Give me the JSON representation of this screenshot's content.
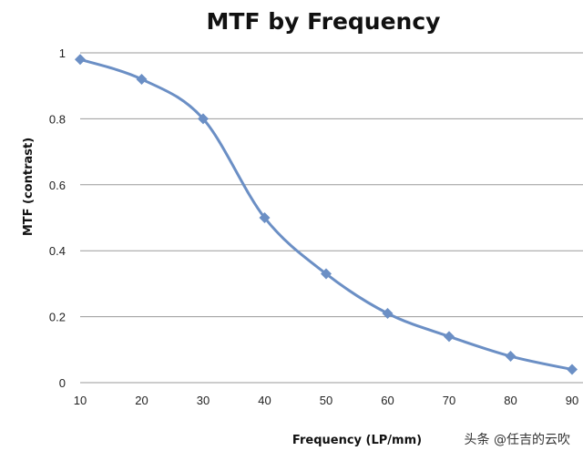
{
  "chart_data": {
    "type": "line",
    "title": "MTF by Frequency",
    "xlabel": "Frequency (LP/mm)",
    "ylabel": "MTF (contrast)",
    "x": [
      10,
      20,
      30,
      40,
      50,
      60,
      70,
      80,
      90
    ],
    "series": [
      {
        "values": [
          0.98,
          0.92,
          0.8,
          0.5,
          0.33,
          0.21,
          0.14,
          0.08,
          0.04
        ],
        "color": "#6b8fc5",
        "marker": "diamond",
        "smooth": true
      }
    ],
    "xticks": [
      "10",
      "20",
      "30",
      "40",
      "50",
      "60",
      "70",
      "80",
      "90"
    ],
    "yticks": [
      "0",
      "0.2",
      "0.4",
      "0.6",
      "0.8",
      "1"
    ],
    "ytick_values": [
      0,
      0.2,
      0.4,
      0.6,
      0.8,
      1
    ],
    "xlim": [
      10,
      90
    ],
    "ylim": [
      0,
      1
    ],
    "grid": "horizontal",
    "legend": "none"
  },
  "watermark": "头条 @任吉的云吹"
}
